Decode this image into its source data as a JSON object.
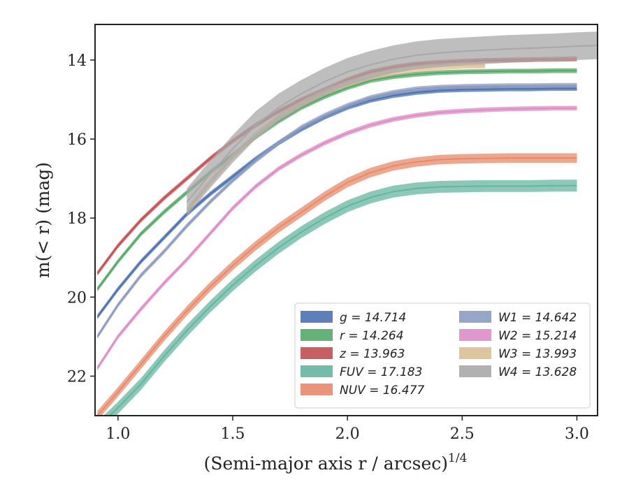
{
  "chart_data": {
    "type": "line",
    "title": "",
    "xlabel": "(Semi-major axis r / arcsec)",
    "xlabel_superscript": "1/4",
    "ylabel": "m(< r) (mag)",
    "xlim": [
      0.9,
      3.09
    ],
    "ylim": [
      23.0,
      13.1
    ],
    "y_inverted": true,
    "x_ticks": [
      "1.0",
      "1.5",
      "2.0",
      "2.5",
      "3.0"
    ],
    "y_ticks": [
      "14",
      "16",
      "18",
      "20",
      "22"
    ],
    "grid": false,
    "legend_position": "lower-right",
    "series": [
      {
        "name": "g = 14.714",
        "color": "#4c72b0",
        "band": 0.06,
        "x": [
          0.91,
          1.0,
          1.1,
          1.2,
          1.3,
          1.4,
          1.5,
          1.6,
          1.7,
          1.8,
          1.9,
          2.0,
          2.1,
          2.2,
          2.3,
          2.4,
          2.5,
          2.6,
          2.7,
          2.8,
          2.9,
          3.0
        ],
        "y": [
          20.5,
          19.8,
          19.1,
          18.5,
          17.9,
          17.4,
          16.95,
          16.5,
          16.1,
          15.75,
          15.45,
          15.2,
          15.02,
          14.9,
          14.82,
          14.77,
          14.75,
          14.74,
          14.73,
          14.73,
          14.72,
          14.72
        ]
      },
      {
        "name": "r = 14.264",
        "color": "#55a868",
        "band": 0.06,
        "x": [
          0.91,
          1.0,
          1.1,
          1.2,
          1.3,
          1.4,
          1.5,
          1.6,
          1.7,
          1.8,
          1.9,
          2.0,
          2.1,
          2.2,
          2.3,
          2.4,
          2.5,
          2.6,
          2.7,
          2.8,
          2.9,
          3.0
        ],
        "y": [
          19.8,
          19.1,
          18.4,
          17.85,
          17.35,
          16.85,
          16.4,
          15.95,
          15.55,
          15.2,
          14.93,
          14.7,
          14.52,
          14.42,
          14.36,
          14.32,
          14.3,
          14.29,
          14.28,
          14.28,
          14.27,
          14.27
        ]
      },
      {
        "name": "z = 13.963",
        "color": "#c44e52",
        "band": 0.06,
        "x": [
          0.91,
          1.0,
          1.1,
          1.2,
          1.3,
          1.4,
          1.5,
          1.6,
          1.7,
          1.8,
          1.9,
          2.0,
          2.1,
          2.2,
          2.3,
          2.4,
          2.5,
          2.6,
          2.7,
          2.8,
          2.9,
          3.0
        ],
        "y": [
          19.4,
          18.7,
          18.05,
          17.5,
          17.0,
          16.5,
          16.05,
          15.65,
          15.3,
          15.0,
          14.75,
          14.5,
          14.3,
          14.18,
          14.1,
          14.06,
          14.03,
          14.01,
          14.0,
          13.99,
          13.98,
          13.97
        ]
      },
      {
        "name": "FUV = 17.183",
        "color": "#64b5a0",
        "band": 0.15,
        "x": [
          0.91,
          1.0,
          1.1,
          1.2,
          1.3,
          1.4,
          1.5,
          1.6,
          1.7,
          1.8,
          1.9,
          2.0,
          2.1,
          2.2,
          2.3,
          2.4,
          2.5,
          2.6,
          2.7,
          2.8,
          2.9,
          3.0
        ],
        "y": [
          23.3,
          22.8,
          22.2,
          21.5,
          20.85,
          20.25,
          19.7,
          19.2,
          18.75,
          18.35,
          18.0,
          17.7,
          17.48,
          17.33,
          17.25,
          17.21,
          17.2,
          17.19,
          17.19,
          17.19,
          17.18,
          17.18
        ]
      },
      {
        "name": "NUV = 16.477",
        "color": "#e8896a",
        "band": 0.12,
        "x": [
          0.91,
          1.0,
          1.1,
          1.2,
          1.3,
          1.4,
          1.5,
          1.6,
          1.7,
          1.8,
          1.9,
          2.0,
          2.1,
          2.2,
          2.3,
          2.4,
          2.5,
          2.6,
          2.7,
          2.8,
          2.9,
          3.0
        ],
        "y": [
          23.0,
          22.4,
          21.7,
          21.0,
          20.35,
          19.75,
          19.2,
          18.7,
          18.25,
          17.85,
          17.45,
          17.1,
          16.85,
          16.68,
          16.58,
          16.52,
          16.5,
          16.49,
          16.48,
          16.48,
          16.48,
          16.48
        ]
      },
      {
        "name": "W1 = 14.642",
        "color": "#8c9bc0",
        "band": 0.06,
        "x": [
          0.91,
          1.0,
          1.1,
          1.2,
          1.3,
          1.4,
          1.5,
          1.6,
          1.7,
          1.8,
          1.9,
          2.0,
          2.1,
          2.2,
          2.3,
          2.4,
          2.5,
          2.6,
          2.7,
          2.8,
          2.9,
          3.0
        ],
        "y": [
          21.0,
          20.2,
          19.45,
          18.85,
          18.2,
          17.6,
          17.05,
          16.55,
          16.1,
          15.7,
          15.4,
          15.15,
          14.95,
          14.82,
          14.73,
          14.69,
          14.67,
          14.66,
          14.65,
          14.65,
          14.64,
          14.64
        ]
      },
      {
        "name": "W2 = 15.214",
        "color": "#dd8cc5",
        "band": 0.06,
        "x": [
          0.91,
          1.0,
          1.1,
          1.2,
          1.3,
          1.4,
          1.5,
          1.6,
          1.7,
          1.8,
          1.9,
          2.0,
          2.1,
          2.2,
          2.3,
          2.4,
          2.5,
          2.6,
          2.7,
          2.8,
          2.9,
          3.0
        ],
        "y": [
          21.8,
          21.0,
          20.3,
          19.65,
          19.05,
          18.4,
          17.75,
          17.2,
          16.75,
          16.4,
          16.1,
          15.85,
          15.65,
          15.5,
          15.4,
          15.33,
          15.29,
          15.26,
          15.24,
          15.23,
          15.22,
          15.22
        ]
      },
      {
        "name": "W3 = 13.993",
        "color": "#dcbf95",
        "band": 0.08,
        "x": [
          1.3,
          1.4,
          1.5,
          1.6,
          1.7,
          1.8,
          1.9,
          2.0,
          2.1,
          2.2,
          2.3,
          2.4,
          2.5,
          2.6
        ],
        "y": [
          17.8,
          17.1,
          16.45,
          15.9,
          15.45,
          15.1,
          14.82,
          14.6,
          14.42,
          14.3,
          14.22,
          14.17,
          14.14,
          14.13
        ]
      },
      {
        "name": "W4 = 13.628",
        "color": "#a8a8a8",
        "band": 0.35,
        "x": [
          1.3,
          1.4,
          1.5,
          1.6,
          1.7,
          1.8,
          1.9,
          2.0,
          2.1,
          2.2,
          2.3,
          2.4,
          2.5,
          2.6,
          2.7,
          2.8,
          2.9,
          3.0,
          3.09
        ],
        "y": [
          17.6,
          16.9,
          16.25,
          15.65,
          15.2,
          14.85,
          14.55,
          14.3,
          14.12,
          13.98,
          13.88,
          13.82,
          13.78,
          13.75,
          13.72,
          13.7,
          13.68,
          13.65,
          13.63
        ]
      }
    ]
  }
}
